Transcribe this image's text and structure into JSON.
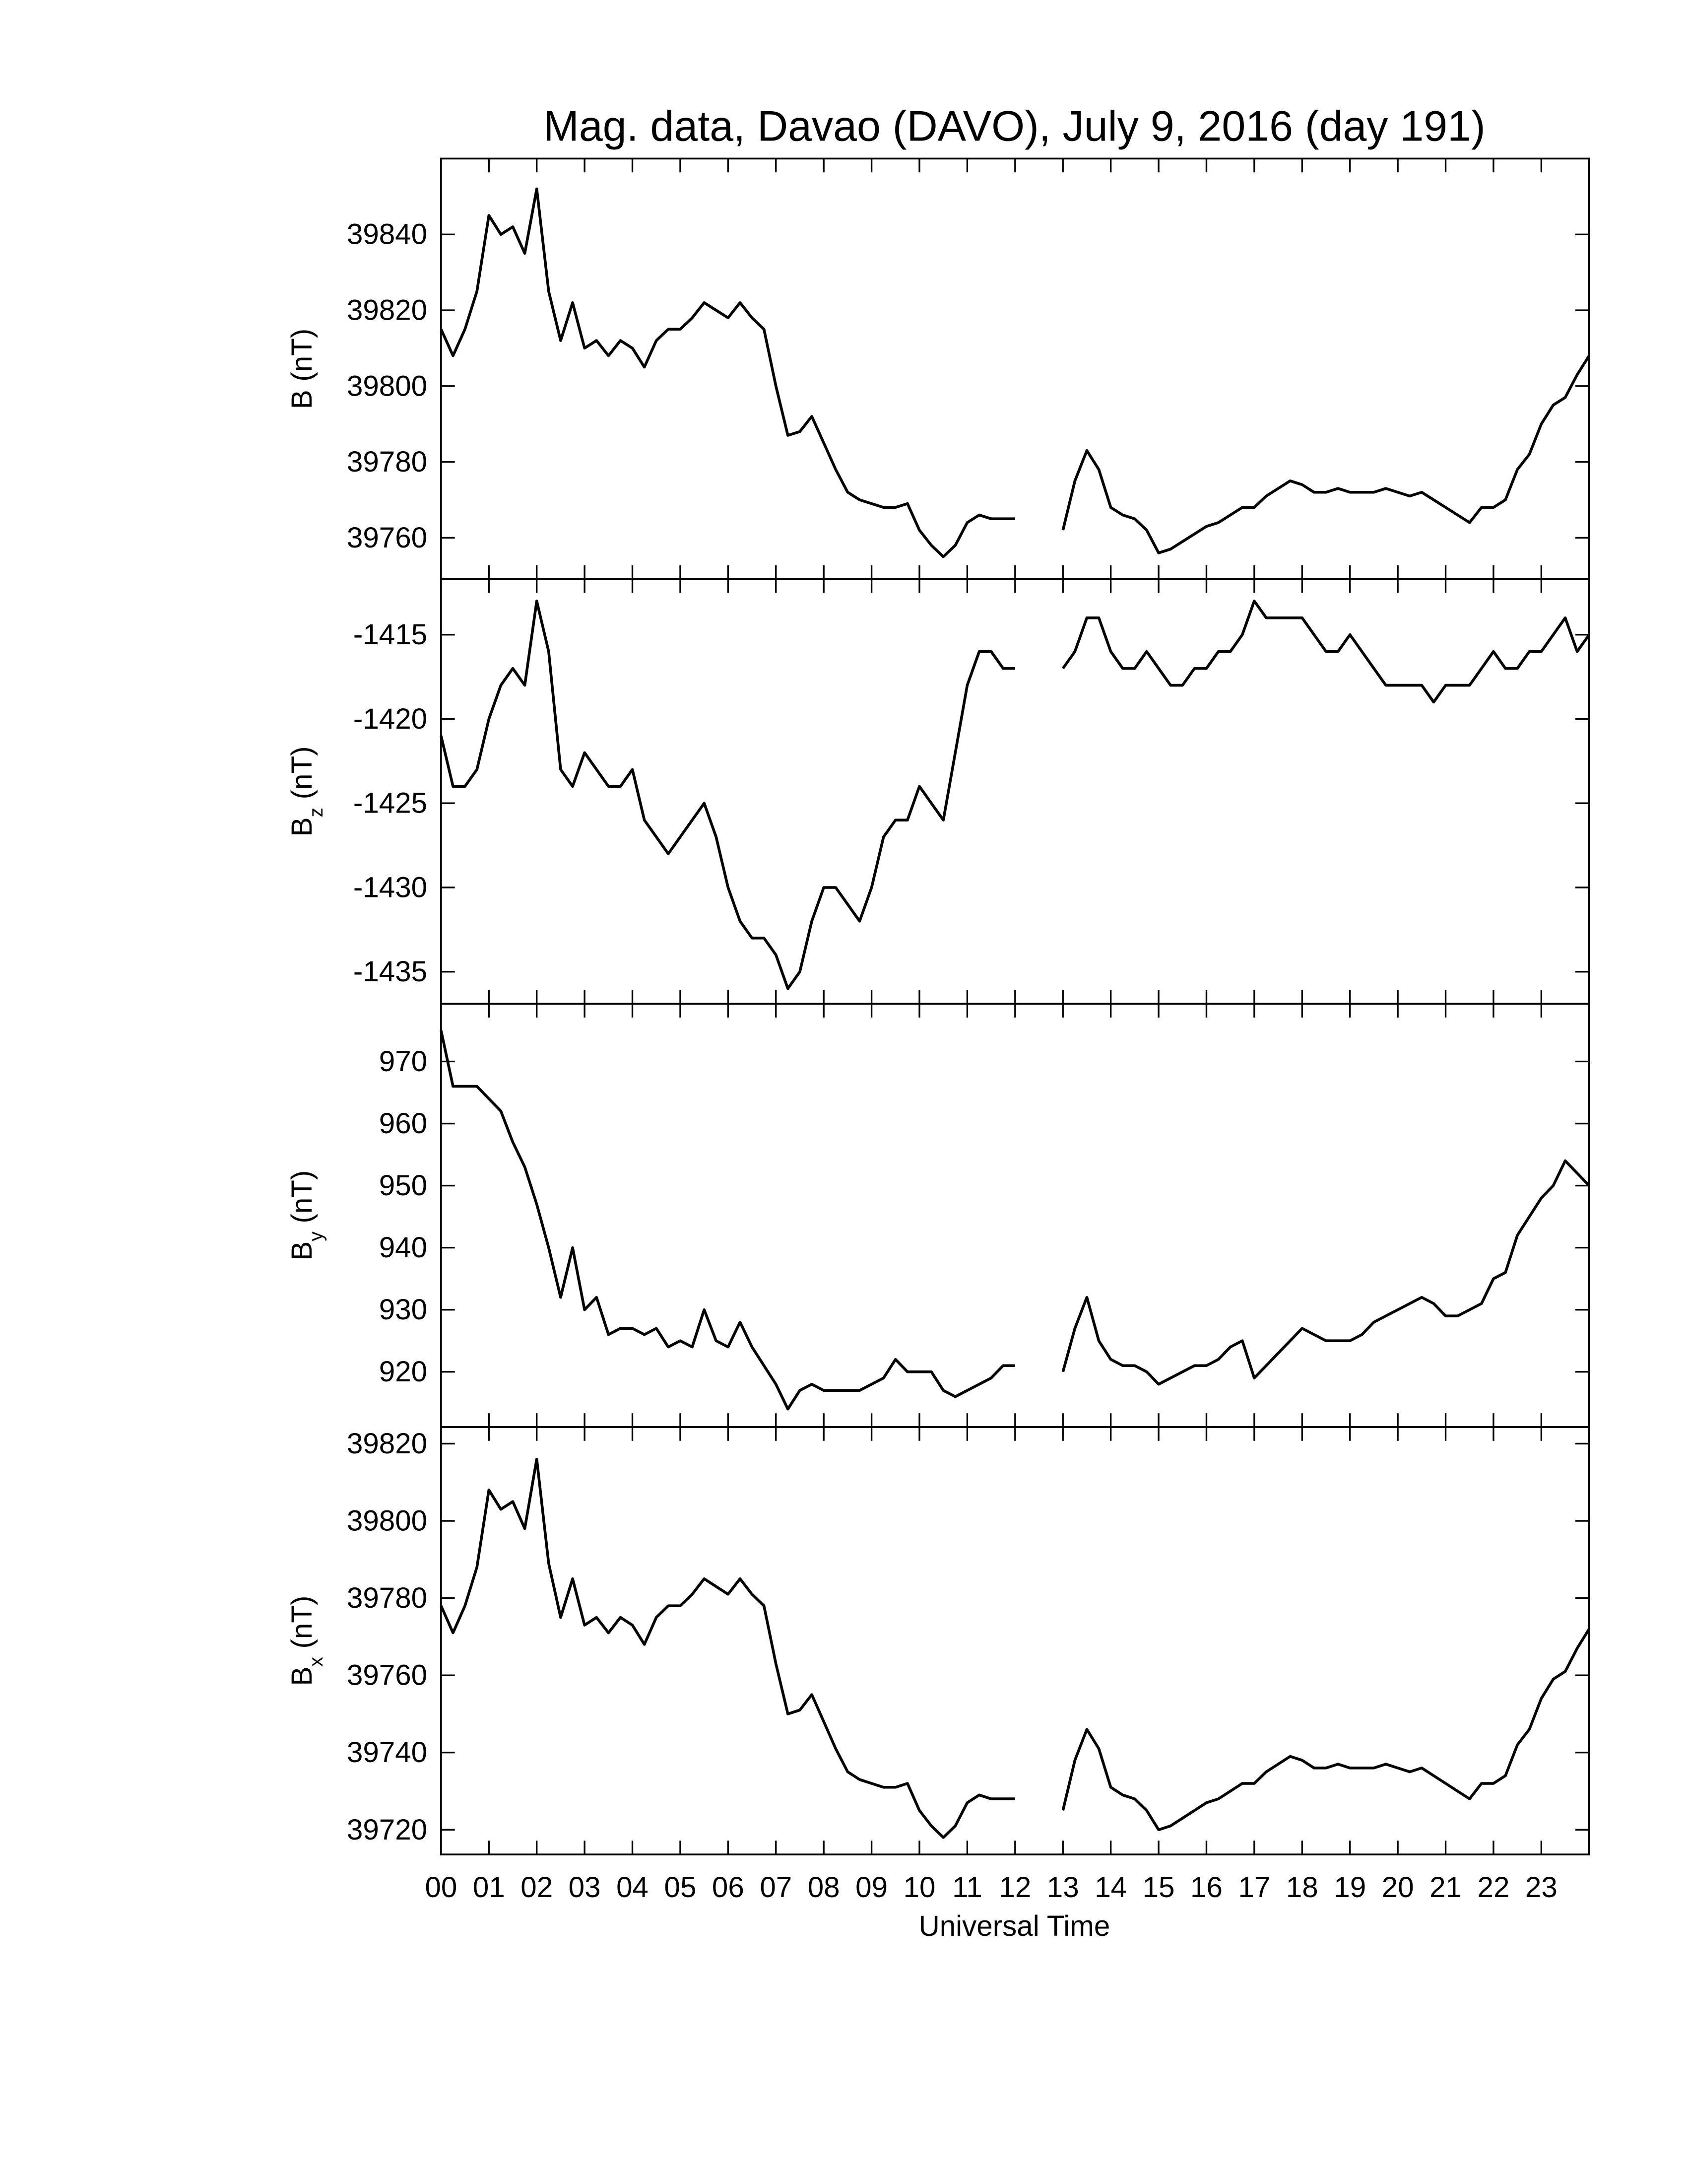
{
  "chart_data": [
    {
      "type": "line",
      "title": "Mag. data, Davao (DAVO), July 9, 2016 (day 191)",
      "ylabel": {
        "symbol": "B",
        "unit": "(nT)"
      },
      "xlim": [
        0,
        24
      ],
      "ylim": [
        39749.1,
        39860
      ],
      "yticks": [
        39760,
        39780,
        39800,
        39820,
        39840
      ],
      "x": [
        0,
        0.25,
        0.5,
        0.75,
        1,
        1.25,
        1.5,
        1.75,
        2,
        2.25,
        2.5,
        2.75,
        3,
        3.25,
        3.5,
        3.75,
        4,
        4.25,
        4.5,
        4.75,
        5,
        5.25,
        5.5,
        5.75,
        6,
        6.25,
        6.5,
        6.75,
        7,
        7.25,
        7.5,
        7.75,
        8,
        8.25,
        8.5,
        8.75,
        9,
        9.25,
        9.5,
        9.75,
        10,
        10.25,
        10.5,
        10.75,
        11,
        11.25,
        11.5,
        11.75,
        12,
        12.25,
        12.5,
        12.75,
        13,
        13.25,
        13.5,
        13.75,
        14,
        14.25,
        14.5,
        14.75,
        15,
        15.25,
        15.5,
        15.75,
        16,
        16.25,
        16.5,
        16.75,
        17,
        17.25,
        17.5,
        17.75,
        18,
        18.25,
        18.5,
        18.75,
        19,
        19.25,
        19.5,
        19.75,
        20,
        20.25,
        20.5,
        20.75,
        21,
        21.25,
        21.5,
        21.75,
        22,
        22.25,
        22.5,
        22.75,
        23,
        23.25,
        23.5,
        23.75,
        24
      ],
      "series": [
        {
          "color": "#000000",
          "values": [
            39815,
            39808,
            39815,
            39825,
            39845,
            39840,
            39842,
            39835,
            39852,
            39825,
            39812,
            39822,
            39810,
            39812,
            39808,
            39812,
            39810,
            39805,
            39812,
            39815,
            39815,
            39818,
            39822,
            39820,
            39818,
            39822,
            39818,
            39815,
            39800,
            39787,
            39788,
            39792,
            39785,
            39778,
            39772,
            39770,
            39769,
            39768,
            39768,
            39769,
            39762,
            39758,
            39755,
            39758,
            39764,
            39766,
            39765,
            39765,
            39765,
            null,
            null,
            null,
            39762,
            39775,
            39783,
            39778,
            39768,
            39766,
            39765,
            39762,
            39756,
            39757,
            39759,
            39761,
            39763,
            39764,
            39766,
            39768,
            39768,
            39771,
            39773,
            39775,
            39774,
            39772,
            39772,
            39773,
            39772,
            39772,
            39772,
            39773,
            39772,
            39771,
            39772,
            39770,
            39768,
            39766,
            39764,
            39768,
            39768,
            39770,
            39778,
            39782,
            39790,
            39795,
            39797,
            39803,
            39808
          ]
        }
      ]
    },
    {
      "type": "line",
      "ylabel": {
        "symbol": "B",
        "subscript": "z",
        "unit": "(nT)"
      },
      "xlim": [
        0,
        24
      ],
      "ylim": [
        -1436.9,
        -1411.7
      ],
      "yticks": [
        -1435,
        -1430,
        -1425,
        -1420,
        -1415
      ],
      "x": [
        0,
        0.25,
        0.5,
        0.75,
        1,
        1.25,
        1.5,
        1.75,
        2,
        2.25,
        2.5,
        2.75,
        3,
        3.25,
        3.5,
        3.75,
        4,
        4.25,
        4.5,
        4.75,
        5,
        5.25,
        5.5,
        5.75,
        6,
        6.25,
        6.5,
        6.75,
        7,
        7.25,
        7.5,
        7.75,
        8,
        8.25,
        8.5,
        8.75,
        9,
        9.25,
        9.5,
        9.75,
        10,
        10.25,
        10.5,
        10.75,
        11,
        11.25,
        11.5,
        11.75,
        12,
        12.25,
        12.5,
        12.75,
        13,
        13.25,
        13.5,
        13.75,
        14,
        14.25,
        14.5,
        14.75,
        15,
        15.25,
        15.5,
        15.75,
        16,
        16.25,
        16.5,
        16.75,
        17,
        17.25,
        17.5,
        17.75,
        18,
        18.25,
        18.5,
        18.75,
        19,
        19.25,
        19.5,
        19.75,
        20,
        20.25,
        20.5,
        20.75,
        21,
        21.25,
        21.5,
        21.75,
        22,
        22.25,
        22.5,
        22.75,
        23,
        23.25,
        23.5,
        23.75,
        24
      ],
      "series": [
        {
          "color": "#000000",
          "values": [
            -1421,
            -1424,
            -1424,
            -1423,
            -1420,
            -1418,
            -1417,
            -1418,
            -1413,
            -1416,
            -1423,
            -1424,
            -1422,
            -1423,
            -1424,
            -1424,
            -1423,
            -1426,
            -1427,
            -1428,
            -1427,
            -1426,
            -1425,
            -1427,
            -1430,
            -1432,
            -1433,
            -1433,
            -1434,
            -1436,
            -1435,
            -1432,
            -1430,
            -1430,
            -1431,
            -1432,
            -1430,
            -1427,
            -1426,
            -1426,
            -1424,
            -1425,
            -1426,
            -1422,
            -1418,
            -1416,
            -1416,
            -1417,
            -1417,
            null,
            null,
            null,
            -1417,
            -1416,
            -1414,
            -1414,
            -1416,
            -1417,
            -1417,
            -1416,
            -1417,
            -1418,
            -1418,
            -1417,
            -1417,
            -1416,
            -1416,
            -1415,
            -1413,
            -1414,
            -1414,
            -1414,
            -1414,
            -1415,
            -1416,
            -1416,
            -1415,
            -1416,
            -1417,
            -1418,
            -1418,
            -1418,
            -1418,
            -1419,
            -1418,
            -1418,
            -1418,
            -1417,
            -1416,
            -1417,
            -1417,
            -1416,
            -1416,
            -1415,
            -1414,
            -1416,
            -1415
          ]
        }
      ]
    },
    {
      "type": "line",
      "ylabel": {
        "symbol": "B",
        "subscript": "y",
        "unit": "(nT)"
      },
      "xlim": [
        0,
        24
      ],
      "ylim": [
        911.1,
        979.3
      ],
      "yticks": [
        920,
        930,
        940,
        950,
        960,
        970
      ],
      "x": [
        0,
        0.25,
        0.5,
        0.75,
        1,
        1.25,
        1.5,
        1.75,
        2,
        2.25,
        2.5,
        2.75,
        3,
        3.25,
        3.5,
        3.75,
        4,
        4.25,
        4.5,
        4.75,
        5,
        5.25,
        5.5,
        5.75,
        6,
        6.25,
        6.5,
        6.75,
        7,
        7.25,
        7.5,
        7.75,
        8,
        8.25,
        8.5,
        8.75,
        9,
        9.25,
        9.5,
        9.75,
        10,
        10.25,
        10.5,
        10.75,
        11,
        11.25,
        11.5,
        11.75,
        12,
        12.25,
        12.5,
        12.75,
        13,
        13.25,
        13.5,
        13.75,
        14,
        14.25,
        14.5,
        14.75,
        15,
        15.25,
        15.5,
        15.75,
        16,
        16.25,
        16.5,
        16.75,
        17,
        17.25,
        17.5,
        17.75,
        18,
        18.25,
        18.5,
        18.75,
        19,
        19.25,
        19.5,
        19.75,
        20,
        20.25,
        20.5,
        20.75,
        21,
        21.25,
        21.5,
        21.75,
        22,
        22.25,
        22.5,
        22.75,
        23,
        23.25,
        23.5,
        23.75,
        24
      ],
      "series": [
        {
          "color": "#000000",
          "values": [
            975,
            966,
            966,
            966,
            964,
            962,
            957,
            953,
            947,
            940,
            932,
            940,
            930,
            932,
            926,
            927,
            927,
            926,
            927,
            924,
            925,
            924,
            930,
            925,
            924,
            928,
            924,
            921,
            918,
            914,
            917,
            918,
            917,
            917,
            917,
            917,
            918,
            919,
            922,
            920,
            920,
            920,
            917,
            916,
            917,
            918,
            919,
            921,
            921,
            null,
            null,
            null,
            920,
            927,
            932,
            925,
            922,
            921,
            921,
            920,
            918,
            919,
            920,
            921,
            921,
            922,
            924,
            925,
            919,
            921,
            923,
            925,
            927,
            926,
            925,
            925,
            925,
            926,
            928,
            929,
            930,
            931,
            932,
            931,
            929,
            929,
            930,
            931,
            935,
            936,
            942,
            945,
            948,
            950,
            954,
            952,
            950
          ]
        }
      ]
    },
    {
      "type": "line",
      "xlabel": "Universal Time",
      "ylabel": {
        "symbol": "B",
        "subscript": "x",
        "unit": "(nT)"
      },
      "xlim": [
        0,
        24
      ],
      "ylim": [
        39713.6,
        39824.3
      ],
      "yticks": [
        39720,
        39740,
        39760,
        39780,
        39800,
        39820
      ],
      "xticks": [
        {
          "value": 0,
          "label": "00"
        },
        {
          "value": 1,
          "label": "01"
        },
        {
          "value": 2,
          "label": "02"
        },
        {
          "value": 3,
          "label": "03"
        },
        {
          "value": 4,
          "label": "04"
        },
        {
          "value": 5,
          "label": "05"
        },
        {
          "value": 6,
          "label": "06"
        },
        {
          "value": 7,
          "label": "07"
        },
        {
          "value": 8,
          "label": "08"
        },
        {
          "value": 9,
          "label": "09"
        },
        10,
        11,
        12,
        13,
        14,
        15,
        16,
        17,
        18,
        19,
        20,
        21,
        22,
        23
      ],
      "x": [
        0,
        0.25,
        0.5,
        0.75,
        1,
        1.25,
        1.5,
        1.75,
        2,
        2.25,
        2.5,
        2.75,
        3,
        3.25,
        3.5,
        3.75,
        4,
        4.25,
        4.5,
        4.75,
        5,
        5.25,
        5.5,
        5.75,
        6,
        6.25,
        6.5,
        6.75,
        7,
        7.25,
        7.5,
        7.75,
        8,
        8.25,
        8.5,
        8.75,
        9,
        9.25,
        9.5,
        9.75,
        10,
        10.25,
        10.5,
        10.75,
        11,
        11.25,
        11.5,
        11.75,
        12,
        12.25,
        12.5,
        12.75,
        13,
        13.25,
        13.5,
        13.75,
        14,
        14.25,
        14.5,
        14.75,
        15,
        15.25,
        15.5,
        15.75,
        16,
        16.25,
        16.5,
        16.75,
        17,
        17.25,
        17.5,
        17.75,
        18,
        18.25,
        18.5,
        18.75,
        19,
        19.25,
        19.5,
        19.75,
        20,
        20.25,
        20.5,
        20.75,
        21,
        21.25,
        21.5,
        21.75,
        22,
        22.25,
        22.5,
        22.75,
        23,
        23.25,
        23.5,
        23.75,
        24
      ],
      "series": [
        {
          "color": "#000000",
          "values": [
            39778,
            39771,
            39778,
            39788,
            39808,
            39803,
            39805,
            39798,
            39816,
            39789,
            39775,
            39785,
            39773,
            39775,
            39771,
            39775,
            39773,
            39768,
            39775,
            39778,
            39778,
            39781,
            39785,
            39783,
            39781,
            39785,
            39781,
            39778,
            39763,
            39750,
            39751,
            39755,
            39748,
            39741,
            39735,
            39733,
            39732,
            39731,
            39731,
            39732,
            39725,
            39721,
            39718,
            39721,
            39727,
            39729,
            39728,
            39728,
            39728,
            null,
            null,
            null,
            39725,
            39738,
            39746,
            39741,
            39731,
            39729,
            39728,
            39725,
            39720,
            39721,
            39723,
            39725,
            39727,
            39728,
            39730,
            39732,
            39732,
            39735,
            39737,
            39739,
            39738,
            39736,
            39736,
            39737,
            39736,
            39736,
            39736,
            39737,
            39736,
            39735,
            39736,
            39734,
            39732,
            39730,
            39728,
            39732,
            39732,
            39734,
            39742,
            39746,
            39754,
            39759,
            39761,
            39767,
            39772
          ]
        }
      ]
    }
  ]
}
